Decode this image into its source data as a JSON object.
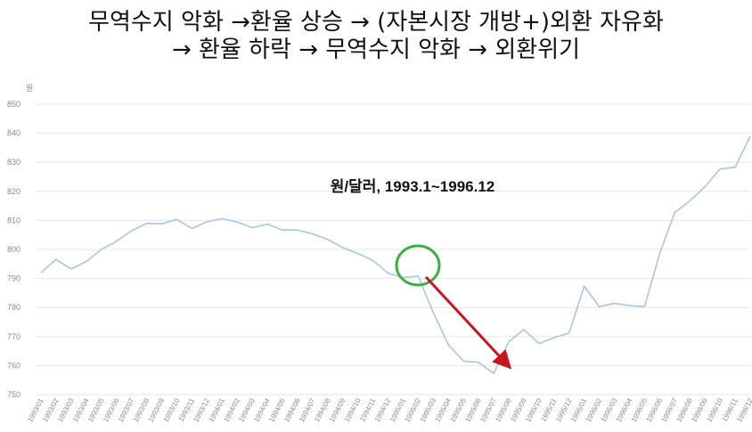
{
  "headline": {
    "line1": "무역수지 악화 →환율 상승 → (자본시장 개방+)외환 자유화",
    "line2": "→ 환율 하락 → 무역수지 악화 → 외환위기"
  },
  "annotations": {
    "circle_color": "#3cb043",
    "arrow_color": "#c8141e"
  },
  "chart_data": {
    "type": "line",
    "title": "원/달러, 1993.1~1996.12",
    "ylabel": "원",
    "xlabel": "",
    "ylim": [
      750,
      850
    ],
    "yticks": [
      750,
      760,
      770,
      780,
      790,
      800,
      810,
      820,
      830,
      840,
      850
    ],
    "grid": true,
    "line_color": "#a9c7de",
    "categories": [
      "1993/01",
      "1993/02",
      "1993/03",
      "1993/04",
      "1993/05",
      "1993/06",
      "1993/07",
      "1993/08",
      "1993/09",
      "1993/10",
      "1993/11",
      "1993/12",
      "1994/01",
      "1994/02",
      "1994/03",
      "1994/04",
      "1994/05",
      "1994/06",
      "1994/07",
      "1994/08",
      "1994/09",
      "1994/10",
      "1994/11",
      "1994/12",
      "1995/01",
      "1995/02",
      "1995/03",
      "1995/04",
      "1995/05",
      "1995/06",
      "1995/07",
      "1995/08",
      "1995/09",
      "1995/10",
      "1995/11",
      "1995/12",
      "1996/01",
      "1996/02",
      "1996/03",
      "1996/04",
      "1996/05",
      "1996/06",
      "1996/07",
      "1996/08",
      "1996/09",
      "1996/10",
      "1996/11",
      "1996/12"
    ],
    "values": [
      792,
      796.5,
      793.3,
      795.8,
      800,
      802.8,
      806.4,
      809,
      808.8,
      810.3,
      807.2,
      809.5,
      810.6,
      809.4,
      807.5,
      808.7,
      806.7,
      806.7,
      805.3,
      803.4,
      800.6,
      798.6,
      796.2,
      791.8,
      790.3,
      790.8,
      778.2,
      767.2,
      761.5,
      761.1,
      757.3,
      768.2,
      772.4,
      767.6,
      769.6,
      771.2,
      787.3,
      780.3,
      781.4,
      780.6,
      780.3,
      798.6,
      812.7,
      816.7,
      821.6,
      827.7,
      828.3,
      839
    ]
  }
}
